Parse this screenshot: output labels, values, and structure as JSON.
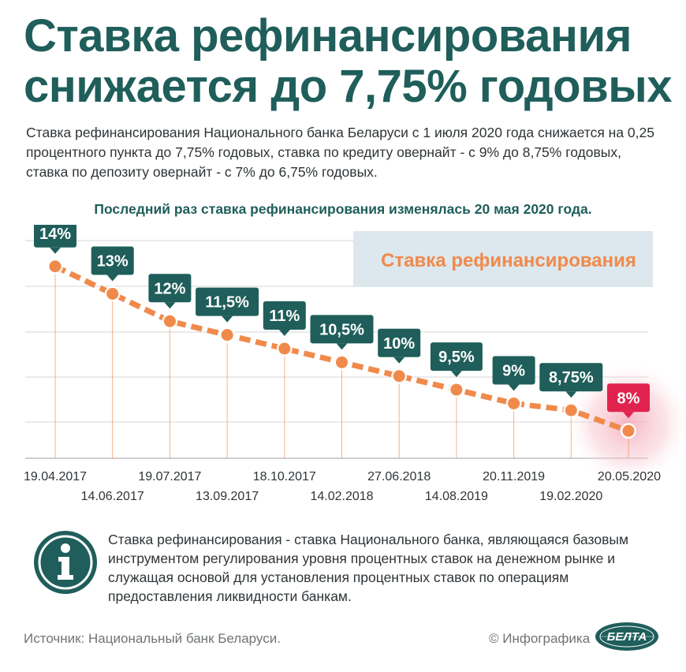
{
  "header": {
    "title_line1": "Ставка рефинансирования",
    "title_line2": "снижается до 7,75% годовых"
  },
  "intro": "Ставка рефинансирования Национального банка Беларуси с 1 июля 2020 года снижается на 0,25 процентного пункта до 7,75% годовых, ставка по кредиту овернайт - с 9% до 8,75% годовых, ставка по депозиту овернайт - с 7% до 6,75% годовых.",
  "last_change": "Последний раз ставка рефинансирования изменялась 20 мая 2020 года.",
  "colors": {
    "teal": "#1f5e5a",
    "orange": "#f08a4b",
    "red": "#e0234e",
    "legend_bg": "#dde7ee"
  },
  "chart_data": {
    "type": "line",
    "legend": "Ставка рефинансирования",
    "legend_position": "top-right",
    "grid": true,
    "unit": "%",
    "ylim": [
      7,
      15
    ],
    "x": [
      "19.04.2017",
      "14.06.2017",
      "19.07.2017",
      "13.09.2017",
      "18.10.2017",
      "14.02.2018",
      "27.06.2018",
      "14.08.2019",
      "20.11.2019",
      "19.02.2020",
      "20.05.2020"
    ],
    "values": [
      14,
      13,
      12,
      11.5,
      11,
      10.5,
      10,
      9.5,
      9,
      8.75,
      8
    ],
    "value_labels": [
      "14%",
      "13%",
      "12%",
      "11,5%",
      "11%",
      "10,5%",
      "10%",
      "9,5%",
      "9%",
      "8,75%",
      "8%"
    ],
    "highlight_last": true
  },
  "info": {
    "icon": "info-icon",
    "text": "Ставка рефинансирования - ставка Национального банка, являющаяся базовым инструментом регулирования уровня процентных ставок на денежном рынке и служащая основой для установления процентных ставок по операциям предоставления ликвидности банкам."
  },
  "footer": {
    "source": "Источник: Национальный банк Беларуси.",
    "copyright": "© Инфографика",
    "logo_text": "БЕЛТА"
  }
}
